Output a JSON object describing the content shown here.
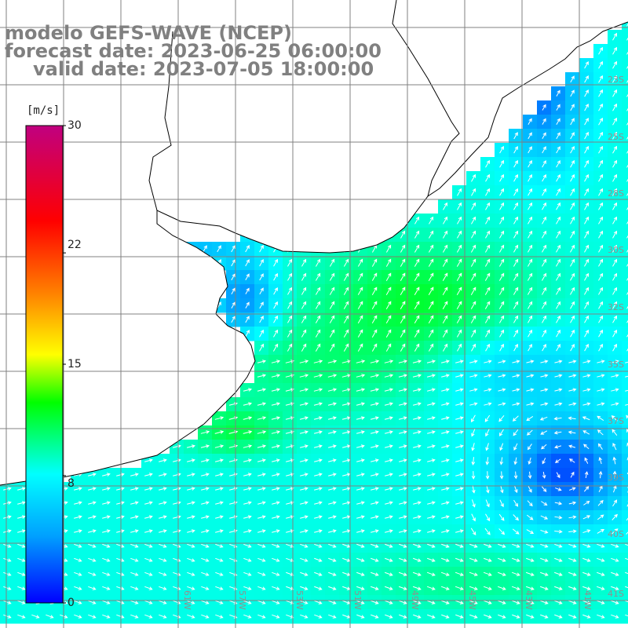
{
  "title": {
    "line1": "modelo GEFS-WAVE (NCEP)",
    "line2": "forecast date: 2023-06-25 06:00:00",
    "line3": "valid date: 2023-07-05 18:00:00"
  },
  "colorbar": {
    "unit": "[m/s]",
    "ticks": [
      "30",
      "22",
      "15",
      "8",
      "0"
    ],
    "tick_values": [
      30,
      22,
      15,
      8,
      0
    ],
    "range": [
      0,
      30
    ],
    "stops": [
      "#0000ff",
      "#00a0ff",
      "#00ffff",
      "#00ff00",
      "#ffff00",
      "#ff8000",
      "#ff0000",
      "#c00080"
    ]
  },
  "lat_labels": [
    "23S",
    "25S",
    "28S",
    "30S",
    "32S",
    "35S",
    "37S",
    "39S",
    "40S",
    "41S"
  ],
  "lon_labels": [
    "61W",
    "57W",
    "53W",
    "51W",
    "49W",
    "45W",
    "43W",
    "41W"
  ],
  "colors": {
    "land": "#ffffff",
    "coast": "#000000",
    "grid": "#808080",
    "arrow": "#ffffff"
  },
  "field_description": "wind speed field with direction arrows over South Atlantic"
}
